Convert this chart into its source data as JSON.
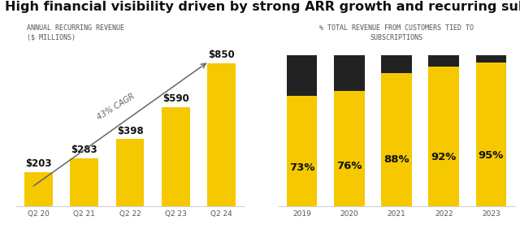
{
  "title": "High financial visibility driven by strong ARR growth and recurring subscription bundles",
  "title_fontsize": 11.5,
  "title_fontweight": "bold",
  "left_subtitle": "ANNUAL RECURRING REVENUE\n($ MILLIONS)",
  "right_subtitle": "% TOTAL REVENUE FROM CUSTOMERS TIED TO\nSUBSCRIPTIONS",
  "subtitle_fontsize": 6.0,
  "arr_categories": [
    "Q2 20",
    "Q2 21",
    "Q2 22",
    "Q2 23",
    "Q2 24"
  ],
  "arr_values": [
    203,
    283,
    398,
    590,
    850
  ],
  "arr_labels": [
    "$203",
    "$283",
    "$398",
    "$590",
    "$850"
  ],
  "arr_bar_color": "#F5C800",
  "cagr_text": "43% CAGR",
  "cagr_fontsize": 7,
  "cagr_rotation": 32,
  "sub_categories": [
    "2019",
    "2020",
    "2021",
    "2022",
    "2023"
  ],
  "sub_yellow": [
    73,
    76,
    88,
    92,
    95
  ],
  "sub_dark": [
    27,
    24,
    12,
    8,
    5
  ],
  "sub_labels": [
    "73%",
    "76%",
    "88%",
    "92%",
    "95%"
  ],
  "sub_yellow_color": "#F5C800",
  "sub_dark_color": "#222222",
  "bar_label_fontsize": 8.5,
  "sub_label_fontsize": 9.5,
  "tick_fontsize": 6.5,
  "background_color": "#ffffff",
  "arr_ylim_max": 980,
  "sub_ylim_max": 109
}
